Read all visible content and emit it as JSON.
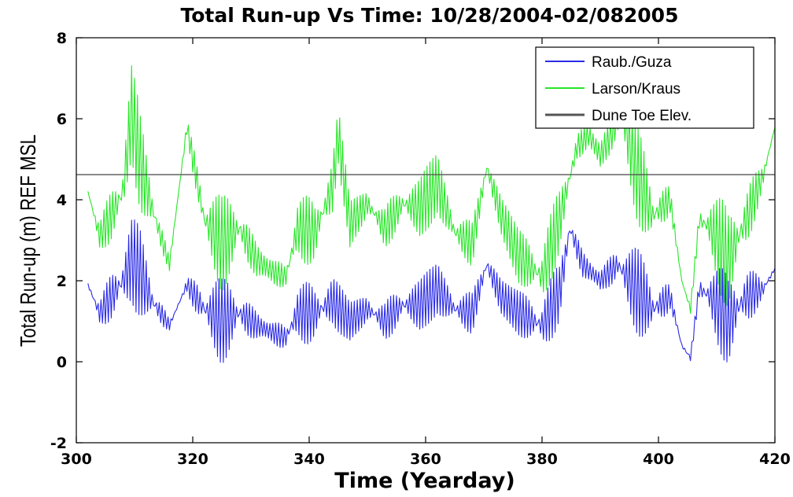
{
  "chart_data": {
    "type": "line",
    "title": "Total Run-up Vs Time: 10/28/2004-02/082005",
    "xlabel": "Time (Yearday)",
    "ylabel": "Total Run-up (m) REF MSL",
    "xlim": [
      300,
      420
    ],
    "ylim": [
      -2,
      8
    ],
    "xticks": [
      300,
      320,
      340,
      360,
      380,
      400,
      420
    ],
    "yticks": [
      -2,
      0,
      2,
      4,
      6,
      8
    ],
    "grid": false,
    "legend_position": "top-right",
    "series": [
      {
        "name": "Raub./Guza",
        "color": "#2a2ae6",
        "x": [
          302,
          304,
          306,
          308,
          309.5,
          311,
          313,
          316,
          319,
          322,
          325,
          328,
          331,
          334,
          336,
          338,
          341,
          344,
          347,
          350,
          353,
          356,
          359,
          362,
          365,
          368,
          370.5,
          373,
          376,
          380,
          383,
          384.8,
          387,
          390,
          393,
          396,
          399,
          402,
          404,
          405.5,
          407,
          409,
          412,
          415,
          418,
          420
        ],
        "y": [
          1.9,
          1.2,
          1.6,
          2.0,
          2.5,
          2.2,
          1.5,
          0.9,
          1.9,
          1.3,
          1.0,
          1.2,
          0.9,
          0.7,
          0.6,
          1.2,
          1.2,
          1.5,
          1.0,
          1.3,
          1.0,
          1.4,
          1.4,
          1.8,
          1.3,
          1.2,
          2.4,
          1.6,
          1.2,
          0.9,
          1.7,
          3.3,
          2.4,
          2.0,
          2.4,
          1.8,
          1.3,
          1.6,
          0.4,
          0.1,
          1.8,
          1.6,
          1.0,
          1.6,
          1.8,
          2.3
        ]
      },
      {
        "name": "Larson/Kraus",
        "color": "#28e628",
        "x": [
          302,
          304,
          306,
          308,
          309.5,
          311,
          313,
          316,
          319,
          322,
          325,
          328,
          331,
          334,
          336,
          338,
          341,
          344,
          345,
          347,
          350,
          353,
          356,
          359,
          362,
          365,
          368,
          370.5,
          373,
          376,
          380,
          383,
          386,
          388,
          390,
          393,
          394,
          396,
          399,
          402,
          404,
          405.5,
          407,
          409,
          412,
          415,
          418,
          420
        ],
        "y": [
          4.2,
          3.1,
          3.6,
          4.2,
          6.2,
          4.9,
          3.8,
          2.4,
          5.8,
          3.5,
          2.9,
          3.3,
          2.5,
          2.2,
          2.1,
          3.3,
          3.2,
          4.3,
          5.6,
          3.4,
          3.9,
          3.3,
          3.9,
          3.8,
          4.4,
          3.2,
          2.9,
          4.8,
          3.6,
          2.6,
          2.1,
          3.5,
          5.3,
          5.6,
          5.1,
          5.9,
          6.0,
          4.8,
          3.6,
          4.0,
          2.0,
          1.3,
          3.5,
          3.3,
          2.5,
          3.5,
          4.6,
          5.8
        ]
      },
      {
        "name": "Dune Toe Elev.",
        "color": "#555555",
        "x": [
          300,
          420
        ],
        "y": [
          4.62,
          4.62
        ]
      }
    ]
  }
}
